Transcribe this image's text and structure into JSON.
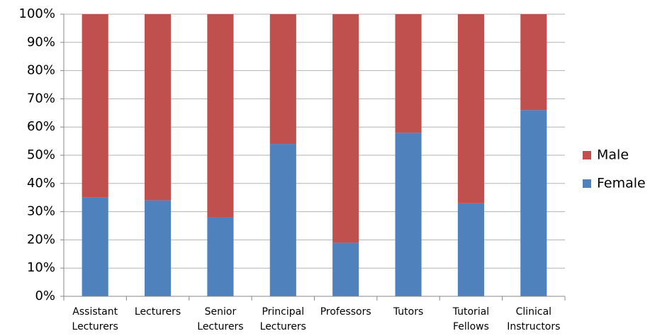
{
  "chart_data": {
    "type": "stacked_bar",
    "categories": [
      "Assistant Lecturers",
      "Lecturers",
      "Senior Lecturers",
      "Principal Lecturers",
      "Professors",
      "Tutors",
      "Tutorial Fellows",
      "Clinical Instructors"
    ],
    "series": [
      {
        "name": "Female",
        "color": "#4f81bd",
        "values": [
          35,
          34,
          28,
          54,
          19,
          58,
          33,
          66
        ]
      },
      {
        "name": "Male",
        "color": "#c0504d",
        "values": [
          65,
          66,
          72,
          46,
          81,
          42,
          67,
          34
        ]
      }
    ],
    "ylim": [
      0,
      100
    ],
    "yticks": [
      {
        "value": 0,
        "label": "0%"
      },
      {
        "value": 10,
        "label": "10%"
      },
      {
        "value": 20,
        "label": "20%"
      },
      {
        "value": 30,
        "label": "30%"
      },
      {
        "value": 40,
        "label": "40%"
      },
      {
        "value": 50,
        "label": "50%"
      },
      {
        "value": 60,
        "label": "60%"
      },
      {
        "value": 70,
        "label": "70%"
      },
      {
        "value": 80,
        "label": "80%"
      },
      {
        "value": 90,
        "label": "90%"
      },
      {
        "value": 100,
        "label": "100%"
      }
    ],
    "grid": true,
    "legend": "right"
  }
}
